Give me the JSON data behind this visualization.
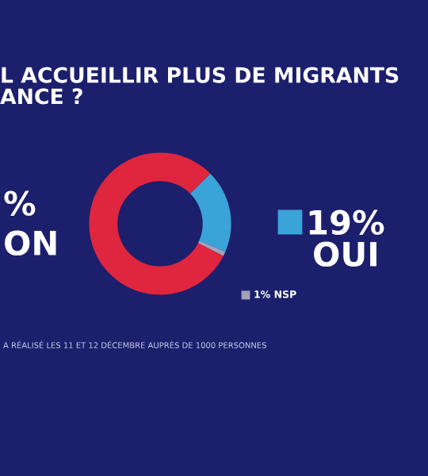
{
  "chart_data": {
    "type": "donut",
    "title": "L ACCUEILLIR PLUS DE MIGRANTS\nANCE ?",
    "categories": [
      "OUI",
      "NSP",
      "ON"
    ],
    "values": [
      19,
      1,
      80
    ],
    "colors": [
      "#3aa3d8",
      "#a3a3b8",
      "#e0253f"
    ],
    "value_labels": [
      "19%",
      "1%",
      "%"
    ],
    "annotations": [
      "A RÉALISÉ LES 11 ET 12 DÉCEMBRE AUPRÈS DE 1000 PERSONNES"
    ]
  }
}
